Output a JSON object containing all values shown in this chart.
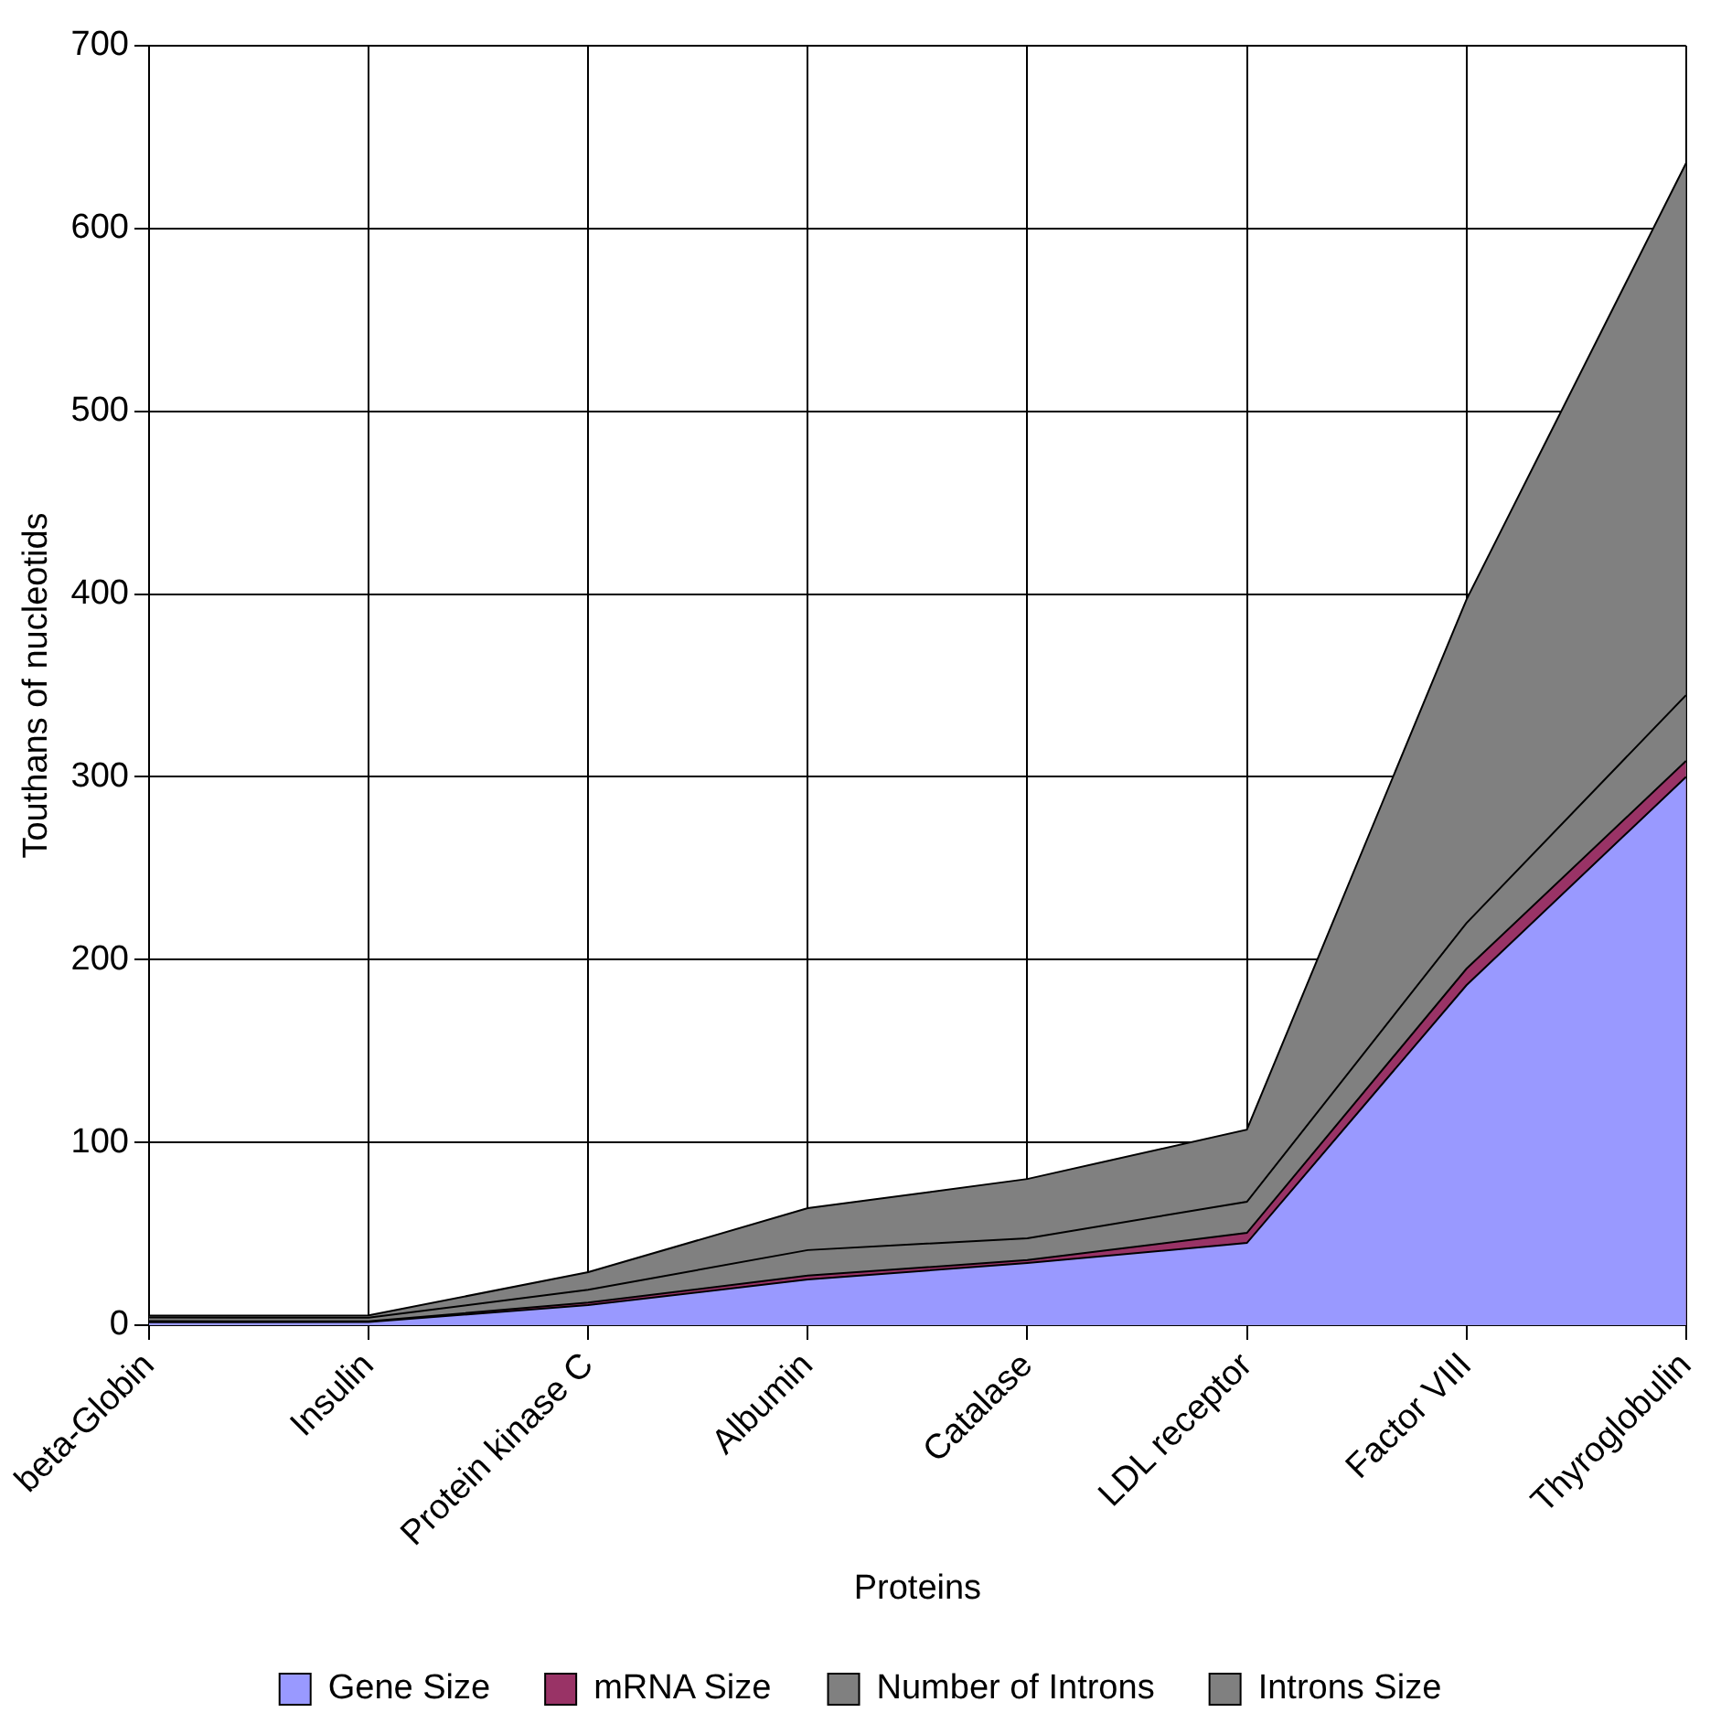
{
  "chart_data": {
    "type": "area",
    "stacked": true,
    "xlabel": "Proteins",
    "ylabel": "Touthans of nucleotids",
    "categories": [
      "beta-Globin",
      "Insulin",
      "Protein kinase C",
      "Albumin",
      "Catalase",
      "LDL receptor",
      "Factor VIII",
      "Thyroglobulin"
    ],
    "series": [
      {
        "name": "Gene Size",
        "color": "#9999ff",
        "values": [
          1.6,
          1.7,
          11,
          25,
          34,
          45,
          186,
          300
        ]
      },
      {
        "name": "mRNA Size",
        "color": "#993366",
        "values": [
          0.6,
          0.4,
          1.4,
          2.1,
          1.6,
          5.5,
          9,
          8.7
        ]
      },
      {
        "name": "Number of Introns",
        "color": "#808080",
        "values": [
          2,
          2,
          7,
          14,
          12,
          17,
          25,
          36
        ]
      },
      {
        "name": "Introns Size",
        "color": "#808080",
        "values": [
          1,
          1.3,
          9.6,
          22.9,
          32.4,
          39.5,
          177,
          291
        ]
      }
    ],
    "ylim": [
      0,
      700
    ],
    "yticks": [
      0,
      100,
      200,
      300,
      400,
      500,
      600,
      700
    ],
    "grid": true,
    "legend": "bottom"
  }
}
